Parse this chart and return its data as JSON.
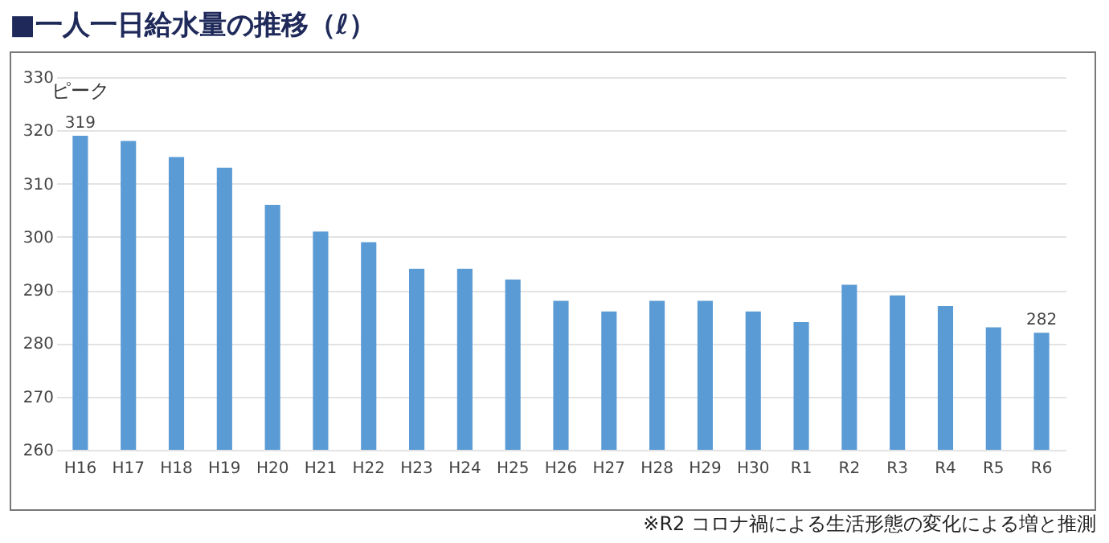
{
  "chart_data": {
    "type": "bar",
    "title": "■一人一日給水量の推移（ℓ）",
    "categories": [
      "H16",
      "H17",
      "H18",
      "H19",
      "H20",
      "H21",
      "H22",
      "H23",
      "H24",
      "H25",
      "H26",
      "H27",
      "H28",
      "H29",
      "H30",
      "R1",
      "R2",
      "R3",
      "R4",
      "R5",
      "R6"
    ],
    "values": [
      319,
      318,
      315,
      313,
      306,
      301,
      299,
      294,
      294,
      292,
      288,
      286,
      288,
      288,
      286,
      284,
      291,
      289,
      287,
      283,
      282
    ],
    "value_labels": [
      "319",
      null,
      null,
      null,
      null,
      null,
      null,
      null,
      null,
      null,
      null,
      null,
      null,
      null,
      null,
      null,
      null,
      null,
      null,
      null,
      "282"
    ],
    "color": "#5b9bd5",
    "ylim": [
      260,
      330
    ],
    "yticks": [
      260,
      270,
      280,
      290,
      300,
      310,
      320,
      330
    ],
    "grid": "y",
    "annotations": [
      {
        "text": "ピーク",
        "x": "H16",
        "y": 319
      },
      "※R2  コロナ禍による生活形態の変化による増と推測"
    ]
  }
}
